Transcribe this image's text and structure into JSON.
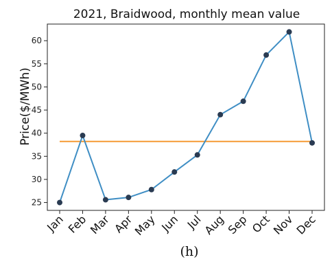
{
  "chart_data": {
    "type": "line",
    "title": "2021, Braidwood, monthly mean value",
    "ylabel": "Price($/MWh)",
    "xlabel": "",
    "categories": [
      "Jan",
      "Feb",
      "Mar",
      "Apr",
      "May",
      "Jun",
      "Jul",
      "Aug",
      "Sep",
      "Oct",
      "Nov",
      "Dec"
    ],
    "series": [
      {
        "values": [
          25.0,
          39.5,
          25.6,
          26.1,
          27.8,
          31.6,
          35.3,
          44.0,
          46.9,
          56.9,
          61.9,
          37.9
        ],
        "color": "#3f8ec4",
        "marker_color": "#2a3b52"
      }
    ],
    "reference_line": {
      "value": 38.2,
      "color": "#f59a35"
    },
    "yticks": [
      25,
      30,
      35,
      40,
      45,
      50,
      55,
      60
    ],
    "ylim": [
      23.3,
      63.6
    ],
    "grid": false,
    "caption": "(h)"
  }
}
